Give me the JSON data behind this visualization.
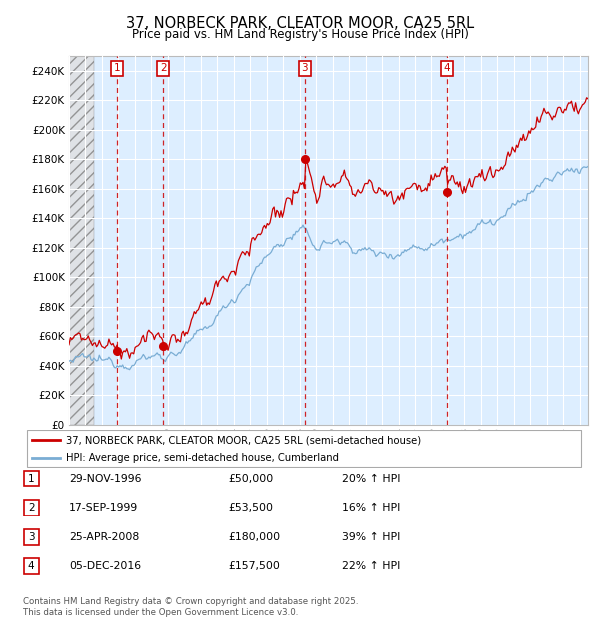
{
  "title_line1": "37, NORBECK PARK, CLEATOR MOOR, CA25 5RL",
  "title_line2": "Price paid vs. HM Land Registry's House Price Index (HPI)",
  "ylim": [
    0,
    250000
  ],
  "yticks": [
    0,
    20000,
    40000,
    60000,
    80000,
    100000,
    120000,
    140000,
    160000,
    180000,
    200000,
    220000,
    240000
  ],
  "ytick_labels": [
    "£0",
    "£20K",
    "£40K",
    "£60K",
    "£80K",
    "£100K",
    "£120K",
    "£140K",
    "£160K",
    "£180K",
    "£200K",
    "£220K",
    "£240K"
  ],
  "sale_dates": [
    1996.91,
    1999.71,
    2008.32,
    2016.92
  ],
  "sale_prices": [
    50000,
    53500,
    180000,
    157500
  ],
  "sale_labels": [
    "1",
    "2",
    "3",
    "4"
  ],
  "sale_info": [
    {
      "label": "1",
      "date": "29-NOV-1996",
      "price": "£50,000",
      "hpi": "20% ↑ HPI"
    },
    {
      "label": "2",
      "date": "17-SEP-1999",
      "price": "£53,500",
      "hpi": "16% ↑ HPI"
    },
    {
      "label": "3",
      "date": "25-APR-2008",
      "price": "£180,000",
      "hpi": "39% ↑ HPI"
    },
    {
      "label": "4",
      "date": "05-DEC-2016",
      "price": "£157,500",
      "hpi": "22% ↑ HPI"
    }
  ],
  "legend_entry1": "37, NORBECK PARK, CLEATOR MOOR, CA25 5RL (semi-detached house)",
  "legend_entry2": "HPI: Average price, semi-detached house, Cumberland",
  "footer": "Contains HM Land Registry data © Crown copyright and database right 2025.\nThis data is licensed under the Open Government Licence v3.0.",
  "line_color_red": "#cc0000",
  "line_color_blue": "#7aadd4",
  "bg_color": "#ddeeff",
  "hatch_bg": "#d8d8d8"
}
